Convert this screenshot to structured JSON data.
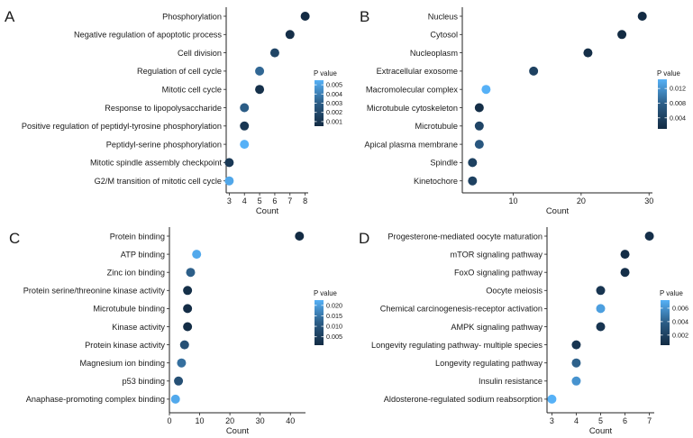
{
  "chart_data": [
    {
      "panel": "A",
      "type": "scatter",
      "xlabel": "Count",
      "xlim": [
        2.8,
        8.2
      ],
      "xticks": [
        3,
        4,
        5,
        6,
        7,
        8
      ],
      "legend": {
        "title": "P value",
        "range": [
          0.0005,
          0.0055
        ],
        "ticks": [
          "0.005",
          "0.004",
          "0.003",
          "0.002",
          "0.001"
        ]
      },
      "terms": [
        "Phosphorylation",
        "Negative regulation of apoptotic process",
        "Cell division",
        "Regulation of cell cycle",
        "Mitotic cell cycle",
        "Response to lipopolysaccharide",
        "Positive regulation of peptidyl-tyrosine phosphorylation",
        "Peptidyl-serine phosphorylation",
        "Mitotic spindle assembly checkpoint",
        "G2/M transition of mitotic cell cycle"
      ],
      "counts": [
        8,
        7,
        6,
        5,
        5,
        4,
        4,
        4,
        3,
        3
      ],
      "pvalues": [
        0.0005,
        0.0007,
        0.0018,
        0.0033,
        0.0008,
        0.003,
        0.0011,
        0.0055,
        0.0012,
        0.0052
      ]
    },
    {
      "panel": "B",
      "type": "scatter",
      "xlabel": "Count",
      "xlim": [
        2.5,
        30.5
      ],
      "xticks": [
        10,
        20,
        30
      ],
      "legend": {
        "title": "P value",
        "range": [
          0.001,
          0.0145
        ],
        "ticks": [
          "0.012",
          "0.008",
          "0.004"
        ]
      },
      "terms": [
        "Nucleus",
        "Cytosol",
        "Nucleoplasm",
        "Extracellular exosome",
        "Macromolecular complex",
        "Microtubule cytoskeleton",
        "Microtubule",
        "Apical plasma membrane",
        "Spindle",
        "Kinetochore"
      ],
      "counts": [
        29,
        26,
        21,
        13,
        6,
        5,
        5,
        5,
        4,
        4
      ],
      "pvalues": [
        0.001,
        0.001,
        0.0015,
        0.004,
        0.0145,
        0.0015,
        0.0045,
        0.007,
        0.004,
        0.004
      ]
    },
    {
      "panel": "C",
      "type": "scatter",
      "xlabel": "Count",
      "xlim": [
        0,
        45
      ],
      "xticks": [
        0,
        10,
        20,
        30,
        40
      ],
      "legend": {
        "title": "P value",
        "range": [
          0.001,
          0.0225
        ],
        "ticks": [
          "0.020",
          "0.015",
          "0.010",
          "0.005"
        ]
      },
      "terms": [
        "Protein binding",
        "ATP binding",
        "Zinc ion binding",
        "Protein serine/threonine kinase activity",
        "Microtubule binding",
        "Kinase activity",
        "Protein kinase activity",
        "Magnesium ion binding",
        "p53 binding",
        "Anaphase-promoting complex binding"
      ],
      "counts": [
        43,
        9,
        7,
        6,
        6,
        6,
        5,
        4,
        3,
        2
      ],
      "pvalues": [
        0.001,
        0.0215,
        0.012,
        0.002,
        0.0015,
        0.0015,
        0.009,
        0.014,
        0.009,
        0.0215
      ]
    },
    {
      "panel": "D",
      "type": "scatter",
      "xlabel": "Count",
      "xlim": [
        2.8,
        7.2
      ],
      "xticks": [
        3,
        4,
        5,
        6,
        7
      ],
      "legend": {
        "title": "P value",
        "range": [
          0.0005,
          0.0072
        ],
        "ticks": [
          "0.006",
          "0.004",
          "0.002"
        ]
      },
      "terms": [
        "Progesterone-mediated oocyte maturation",
        "mTOR signaling pathway",
        "FoxO signaling pathway",
        "Oocyte meiosis",
        "Chemical carcinogenesis-receptor activation",
        "AMPK signaling pathway",
        "Longevity regulating pathway- multiple species",
        "Longevity regulating pathway",
        "Insulin resistance",
        "Aldosterone-regulated sodium reabsorption"
      ],
      "counts": [
        7,
        6,
        6,
        5,
        5,
        5,
        4,
        4,
        4,
        3
      ],
      "pvalues": [
        0.0008,
        0.0007,
        0.0008,
        0.0012,
        0.0065,
        0.0012,
        0.0012,
        0.004,
        0.006,
        0.0072
      ]
    }
  ]
}
